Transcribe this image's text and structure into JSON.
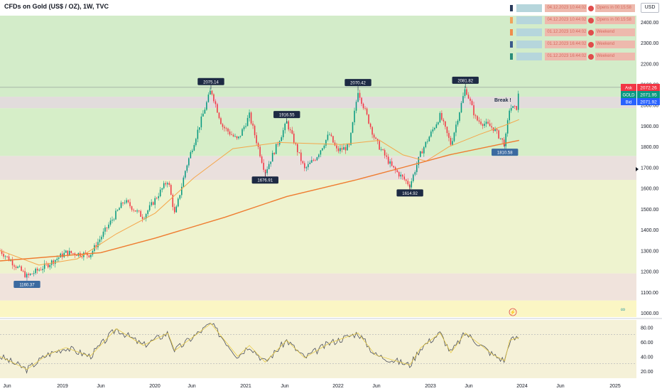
{
  "header": {
    "title": "CFDs on Gold (US$ / OZ), 1W, TVC"
  },
  "currency_button": "USD",
  "colors": {
    "up": "#089981",
    "down": "#f23645",
    "ma_fast": "#f5a64a",
    "ma_slow": "#ef7b2f",
    "rsi_line": "#4b4f5c",
    "rsi_ma": "#e8c93a",
    "callout": "#1d2a44",
    "callout_blue": "#3b6aa0",
    "ask": "#f23645",
    "last": "#089981",
    "bid": "#2962ff"
  },
  "alerts": [
    {
      "marker_color": "#2a3b5c",
      "name": "",
      "time": "04.12.2023 10:44:02",
      "status": "Opens in 00:15:58"
    },
    {
      "marker_color": "#f0a35c",
      "name": "",
      "time": "04.12.2023 10:44:02",
      "status": "Opens in 00:15:58"
    },
    {
      "marker_color": "#f08c4c",
      "name": "",
      "time": "01.12.2023 10:44:02",
      "status": "Weekend"
    },
    {
      "marker_color": "#3b5a8c",
      "name": "",
      "time": "01.12.2023 16:44:02",
      "status": "Weekend"
    },
    {
      "marker_color": "#2a8c7a",
      "name": "",
      "time": "01.12.2023 16:44:02",
      "status": "Weekend"
    }
  ],
  "price_labels": {
    "ask": {
      "tag": "Ask",
      "value": "2072.26"
    },
    "last": {
      "tag": "GOLD",
      "value": "2071.95"
    },
    "bid": {
      "tag": "Bid",
      "value": "2071.92"
    }
  },
  "icons": [
    "lightning-icon",
    "infinity-icon",
    "arrow-right-icon"
  ],
  "annotations": {
    "highs": [
      "2075.14",
      "2070.42",
      "2081.82"
    ],
    "lows": [
      "1160.37",
      "1676.91",
      "1614.92",
      "1810.58"
    ],
    "mid": "1916.55",
    "break_label": "Break !"
  },
  "chart_data": {
    "type": "candlestick",
    "ylim": [
      980,
      2430
    ],
    "y_ticks": [
      1000,
      1100,
      1200,
      1300,
      1400,
      1500,
      1600,
      1700,
      1800,
      1900,
      2000,
      2100,
      2200,
      2300,
      2400
    ],
    "y_tick_labels": [
      "1000.00",
      "1100.00",
      "1200.00",
      "1300.00",
      "1400.00",
      "1500.00",
      "1600.00",
      "1700.00",
      "1800.00",
      "1900.00",
      "2000.00",
      "2100.00",
      "2200.00",
      "2300.00",
      "2400.00"
    ],
    "x_labels": [
      "Jun",
      "2019",
      "Jun",
      "2020",
      "Jun",
      "2021",
      "Jun",
      "2022",
      "Jun",
      "2023",
      "Jun",
      "2024",
      "Jun",
      "2025"
    ],
    "zones": [
      {
        "from": 980,
        "to": 1060,
        "color": "#fbf6c4"
      },
      {
        "from": 1060,
        "to": 1190,
        "color": "#f0e3dc"
      },
      {
        "from": 1190,
        "to": 1640,
        "color": "#eef3cf"
      },
      {
        "from": 1640,
        "to": 1755,
        "color": "#eae0dd"
      },
      {
        "from": 1755,
        "to": 1985,
        "color": "#d6eec8"
      },
      {
        "from": 1985,
        "to": 2040,
        "color": "#e2dcdc"
      },
      {
        "from": 2040,
        "to": 2430,
        "color": "#d3ecc9"
      }
    ],
    "horizontal_lines": [
      2085
    ],
    "keypoints": [
      [
        "2018-05-01",
        1300
      ],
      [
        "2018-08-15",
        1175
      ],
      [
        "2018-11-01",
        1230
      ],
      [
        "2019-01-15",
        1290
      ],
      [
        "2019-04-20",
        1280
      ],
      [
        "2019-06-20",
        1400
      ],
      [
        "2019-09-01",
        1540
      ],
      [
        "2019-11-15",
        1460
      ],
      [
        "2020-02-20",
        1640
      ],
      [
        "2020-03-18",
        1470
      ],
      [
        "2020-05-01",
        1700
      ],
      [
        "2020-08-07",
        2075.14
      ],
      [
        "2020-09-20",
        1900
      ],
      [
        "2020-11-20",
        1830
      ],
      [
        "2021-01-05",
        1950
      ],
      [
        "2021-03-08",
        1676.91
      ],
      [
        "2021-06-01",
        1916.55
      ],
      [
        "2021-08-10",
        1690
      ],
      [
        "2021-09-25",
        1750
      ],
      [
        "2021-11-15",
        1860
      ],
      [
        "2021-12-15",
        1780
      ],
      [
        "2022-02-01",
        1800
      ],
      [
        "2022-03-08",
        2070.42
      ],
      [
        "2022-05-15",
        1830
      ],
      [
        "2022-07-20",
        1700
      ],
      [
        "2022-09-28",
        1614.92
      ],
      [
        "2022-11-10",
        1770
      ],
      [
        "2023-01-25",
        1950
      ],
      [
        "2023-03-08",
        1810
      ],
      [
        "2023-05-04",
        2081.82
      ],
      [
        "2023-06-15",
        1930
      ],
      [
        "2023-08-21",
        1890
      ],
      [
        "2023-10-06",
        1810.58
      ],
      [
        "2023-10-25",
        1990
      ],
      [
        "2023-11-20",
        1980
      ],
      [
        "2023-12-01",
        2071.95
      ]
    ],
    "ma_fast_points": [
      [
        "2018-05-01",
        1300
      ],
      [
        "2018-10-01",
        1230
      ],
      [
        "2019-03-01",
        1260
      ],
      [
        "2019-08-01",
        1380
      ],
      [
        "2020-01-01",
        1480
      ],
      [
        "2020-06-01",
        1650
      ],
      [
        "2020-11-01",
        1790
      ],
      [
        "2021-05-01",
        1820
      ],
      [
        "2022-01-01",
        1810
      ],
      [
        "2022-06-01",
        1830
      ],
      [
        "2022-09-01",
        1760
      ],
      [
        "2022-12-01",
        1730
      ],
      [
        "2023-03-01",
        1800
      ],
      [
        "2023-07-01",
        1860
      ],
      [
        "2023-10-01",
        1900
      ],
      [
        "2023-12-01",
        1930
      ]
    ],
    "ma_slow_points": [
      [
        "2018-05-01",
        1250
      ],
      [
        "2019-06-01",
        1290
      ],
      [
        "2020-01-01",
        1360
      ],
      [
        "2020-10-01",
        1460
      ],
      [
        "2021-06-01",
        1560
      ],
      [
        "2022-03-01",
        1640
      ],
      [
        "2022-09-01",
        1700
      ],
      [
        "2023-03-01",
        1760
      ],
      [
        "2023-12-01",
        1830
      ]
    ],
    "rsi": {
      "y_ticks": [
        20,
        40,
        60,
        80
      ],
      "y_tick_labels": [
        "20.00",
        "40.00",
        "60.00",
        "80.00"
      ],
      "levels": [
        30,
        70
      ],
      "keypoints": [
        [
          "2018-05-01",
          40
        ],
        [
          "2018-08-15",
          22
        ],
        [
          "2018-11-01",
          42
        ],
        [
          "2019-01-15",
          52
        ],
        [
          "2019-04-20",
          40
        ],
        [
          "2019-08-01",
          78
        ],
        [
          "2019-11-15",
          55
        ],
        [
          "2020-02-20",
          72
        ],
        [
          "2020-03-18",
          48
        ],
        [
          "2020-08-07",
          85
        ],
        [
          "2020-11-20",
          40
        ],
        [
          "2021-01-05",
          55
        ],
        [
          "2021-03-08",
          32
        ],
        [
          "2021-06-01",
          62
        ],
        [
          "2021-08-10",
          38
        ],
        [
          "2021-11-15",
          58
        ],
        [
          "2022-03-08",
          72
        ],
        [
          "2022-05-15",
          42
        ],
        [
          "2022-09-28",
          28
        ],
        [
          "2022-11-10",
          52
        ],
        [
          "2023-01-25",
          72
        ],
        [
          "2023-03-08",
          45
        ],
        [
          "2023-05-04",
          72
        ],
        [
          "2023-08-21",
          42
        ],
        [
          "2023-10-06",
          34
        ],
        [
          "2023-10-25",
          62
        ],
        [
          "2023-12-01",
          66
        ]
      ]
    }
  }
}
